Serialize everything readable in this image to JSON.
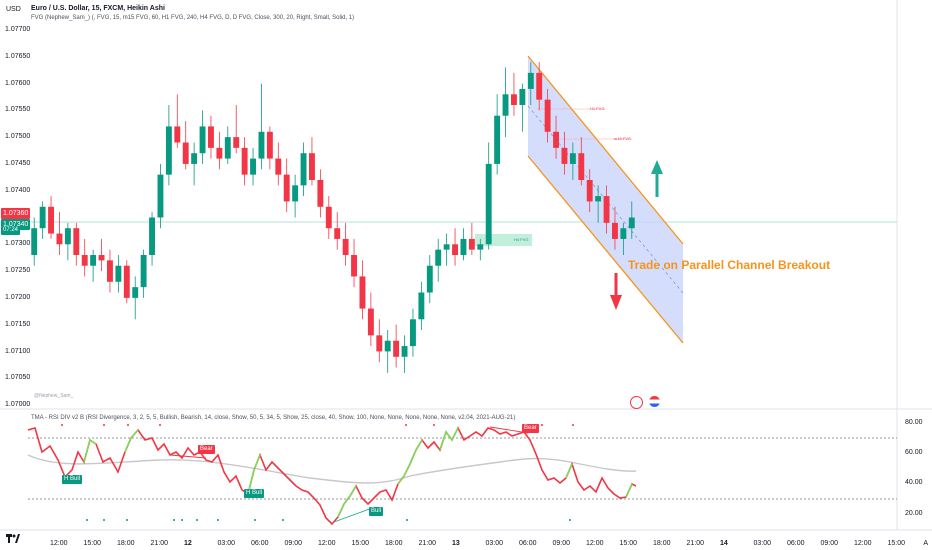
{
  "header": {
    "currency": "USD",
    "symbol_title": "Euro / U.S. Dollar, 15, FXCM, Heikin Ashi",
    "fvg_indicator": "FVG (Nephew_Sam_) (, FVG, 15, m15 FVG, 60, H1 FVG, 240, H4 FVG, D, D FVG, Close, 300, 20, Right, Small, Solid, 1)",
    "rsi_indicator": "TMA - RSI DIV v2 B (RSI Divergence, 3, 2, 5, 5, Bullish, Bearish, 14, close, Show, 50, 5, 34, 5, Show, 25, close, 40, Show, 100, None, None, None, None, None, v2.04, 2021-AUG-21)",
    "watermark": "@Nephew_Sam_"
  },
  "price_axis": [
    "1.07700",
    "1.07650",
    "1.07600",
    "1.07550",
    "1.07500",
    "1.07450",
    "1.07400",
    "1.07350",
    "1.07300",
    "1.07250",
    "1.07200",
    "1.07150",
    "1.07100",
    "1.07050",
    "1.07000"
  ],
  "price_badges": [
    "1.07360",
    "1.07340",
    "07:24"
  ],
  "rsi_axis": [
    "80.00",
    "60.00",
    "40.00",
    "20.00"
  ],
  "time_axis": [
    {
      "label": "12:00",
      "bold": false
    },
    {
      "label": "15:00",
      "bold": false
    },
    {
      "label": "18:00",
      "bold": false
    },
    {
      "label": "21:00",
      "bold": false
    },
    {
      "label": "12",
      "bold": true
    },
    {
      "label": "03:00",
      "bold": false
    },
    {
      "label": "06:00",
      "bold": false
    },
    {
      "label": "09:00",
      "bold": false
    },
    {
      "label": "12:00",
      "bold": false
    },
    {
      "label": "15:00",
      "bold": false
    },
    {
      "label": "18:00",
      "bold": false
    },
    {
      "label": "21:00",
      "bold": false
    },
    {
      "label": "13",
      "bold": true
    },
    {
      "label": "03:00",
      "bold": false
    },
    {
      "label": "06:00",
      "bold": false
    },
    {
      "label": "09:00",
      "bold": false
    },
    {
      "label": "12:00",
      "bold": false
    },
    {
      "label": "15:00",
      "bold": false
    },
    {
      "label": "18:00",
      "bold": false
    },
    {
      "label": "21:00",
      "bold": false
    },
    {
      "label": "14",
      "bold": true
    },
    {
      "label": "03:00",
      "bold": false
    },
    {
      "label": "06:00",
      "bold": false
    },
    {
      "label": "09:00",
      "bold": false
    },
    {
      "label": "12:00",
      "bold": false
    },
    {
      "label": "15:00",
      "bold": false
    }
  ],
  "scale_button": "A",
  "annotations": {
    "trade_note": "Trade on Parallel Channel Breakout",
    "h1_fvg": "H1 FVG",
    "h4_fvg": "H4 FVG",
    "m15_fvg": "m15 FVG"
  },
  "rsi_tags": [
    {
      "label": "H Bull",
      "kind": "bull"
    },
    {
      "label": "Bear",
      "kind": "bear"
    },
    {
      "label": "H Bull",
      "kind": "bull"
    },
    {
      "label": "Bull",
      "kind": "bull"
    },
    {
      "label": "Bear",
      "kind": "bear"
    }
  ],
  "colors": {
    "bull": "#089981",
    "bear": "#f23645",
    "channel": "#f7931a",
    "channel_fill": "#c5d3fb",
    "accent": "#f7931a"
  },
  "icons": {
    "logo": "tradingview-logo-icon",
    "up_arrow": "arrow-up-icon",
    "down_arrow": "arrow-down-icon"
  },
  "chart_data": {
    "type": "candlestick",
    "chart_type": "Heikin Ashi",
    "ylim": [
      1.07,
      1.077
    ],
    "grid": false,
    "candles": [
      [
        1.0728,
        1.0735,
        1.0726,
        1.0733
      ],
      [
        1.0733,
        1.0738,
        1.0731,
        1.0737
      ],
      [
        1.0737,
        1.0739,
        1.0731,
        1.0732
      ],
      [
        1.0732,
        1.0736,
        1.0728,
        1.073
      ],
      [
        1.073,
        1.0734,
        1.0727,
        1.0733
      ],
      [
        1.0733,
        1.0734,
        1.0726,
        1.0728
      ],
      [
        1.0728,
        1.0731,
        1.0724,
        1.0726
      ],
      [
        1.0726,
        1.0729,
        1.0723,
        1.0728
      ],
      [
        1.0728,
        1.0731,
        1.0725,
        1.0727
      ],
      [
        1.0727,
        1.0729,
        1.0721,
        1.0723
      ],
      [
        1.0723,
        1.0728,
        1.0721,
        1.0726
      ],
      [
        1.0726,
        1.0727,
        1.0719,
        1.072
      ],
      [
        1.072,
        1.0724,
        1.0716,
        1.0722
      ],
      [
        1.0722,
        1.0729,
        1.072,
        1.0728
      ],
      [
        1.0728,
        1.0736,
        1.0726,
        1.0735
      ],
      [
        1.0735,
        1.0745,
        1.0733,
        1.0743
      ],
      [
        1.0743,
        1.0756,
        1.0741,
        1.0752
      ],
      [
        1.0752,
        1.0758,
        1.0748,
        1.0749
      ],
      [
        1.0749,
        1.0753,
        1.0744,
        1.0745
      ],
      [
        1.0745,
        1.0749,
        1.0741,
        1.0747
      ],
      [
        1.0747,
        1.0755,
        1.0745,
        1.0752
      ],
      [
        1.0752,
        1.0754,
        1.0746,
        1.0748
      ],
      [
        1.0748,
        1.0751,
        1.0744,
        1.0746
      ],
      [
        1.0746,
        1.0752,
        1.0745,
        1.075
      ],
      [
        1.075,
        1.0756,
        1.0747,
        1.0748
      ],
      [
        1.0748,
        1.075,
        1.0741,
        1.0743
      ],
      [
        1.0743,
        1.0748,
        1.0741,
        1.0746
      ],
      [
        1.0746,
        1.076,
        1.0744,
        1.0751
      ],
      [
        1.0751,
        1.0752,
        1.0744,
        1.0746
      ],
      [
        1.0746,
        1.0749,
        1.0741,
        1.0743
      ],
      [
        1.0743,
        1.0746,
        1.0736,
        1.0738
      ],
      [
        1.0738,
        1.0743,
        1.0735,
        1.0741
      ],
      [
        1.0741,
        1.0749,
        1.0739,
        1.0747
      ],
      [
        1.0747,
        1.075,
        1.0741,
        1.0742
      ],
      [
        1.0742,
        1.0744,
        1.0735,
        1.0737
      ],
      [
        1.0737,
        1.0739,
        1.0731,
        1.0733
      ],
      [
        1.0733,
        1.0736,
        1.0729,
        1.0731
      ],
      [
        1.0731,
        1.0734,
        1.0726,
        1.0728
      ],
      [
        1.0728,
        1.0731,
        1.0722,
        1.0724
      ],
      [
        1.0724,
        1.0727,
        1.0716,
        1.0718
      ],
      [
        1.0718,
        1.0721,
        1.0711,
        1.0713
      ],
      [
        1.0713,
        1.0716,
        1.0708,
        1.071
      ],
      [
        1.071,
        1.0714,
        1.0706,
        1.0712
      ],
      [
        1.0712,
        1.0715,
        1.0707,
        1.0709
      ],
      [
        1.0709,
        1.0713,
        1.0706,
        1.0711
      ],
      [
        1.0711,
        1.0718,
        1.0709,
        1.0716
      ],
      [
        1.0716,
        1.0723,
        1.0714,
        1.0721
      ],
      [
        1.0721,
        1.0728,
        1.0719,
        1.0726
      ],
      [
        1.0726,
        1.0731,
        1.0723,
        1.0729
      ],
      [
        1.0729,
        1.0732,
        1.0726,
        1.073
      ],
      [
        1.073,
        1.0733,
        1.0726,
        1.0728
      ],
      [
        1.0728,
        1.0733,
        1.0727,
        1.0731
      ],
      [
        1.0731,
        1.0734,
        1.0728,
        1.0729
      ],
      [
        1.0729,
        1.0731,
        1.0727,
        1.073
      ],
      [
        1.073,
        1.0749,
        1.0729,
        1.0745
      ],
      [
        1.0745,
        1.0758,
        1.0743,
        1.0754
      ],
      [
        1.0754,
        1.0763,
        1.075,
        1.0758
      ],
      [
        1.0758,
        1.0762,
        1.0754,
        1.0756
      ],
      [
        1.0756,
        1.076,
        1.0751,
        1.0759
      ],
      [
        1.0759,
        1.0764,
        1.0756,
        1.0762
      ],
      [
        1.0762,
        1.0764,
        1.0755,
        1.0757
      ],
      [
        1.0757,
        1.0759,
        1.0749,
        1.0751
      ],
      [
        1.0751,
        1.0754,
        1.0746,
        1.0748
      ],
      [
        1.0748,
        1.0751,
        1.0743,
        1.0745
      ],
      [
        1.0745,
        1.0749,
        1.0742,
        1.0747
      ],
      [
        1.0747,
        1.075,
        1.0741,
        1.0742
      ],
      [
        1.0742,
        1.0744,
        1.0736,
        1.0738
      ],
      [
        1.0738,
        1.0741,
        1.0734,
        1.0739
      ],
      [
        1.0739,
        1.0741,
        1.0732,
        1.0734
      ],
      [
        1.0734,
        1.0737,
        1.0729,
        1.0731
      ],
      [
        1.0731,
        1.0734,
        1.0728,
        1.0733
      ],
      [
        1.0733,
        1.0738,
        1.0731,
        1.0735
      ]
    ]
  }
}
